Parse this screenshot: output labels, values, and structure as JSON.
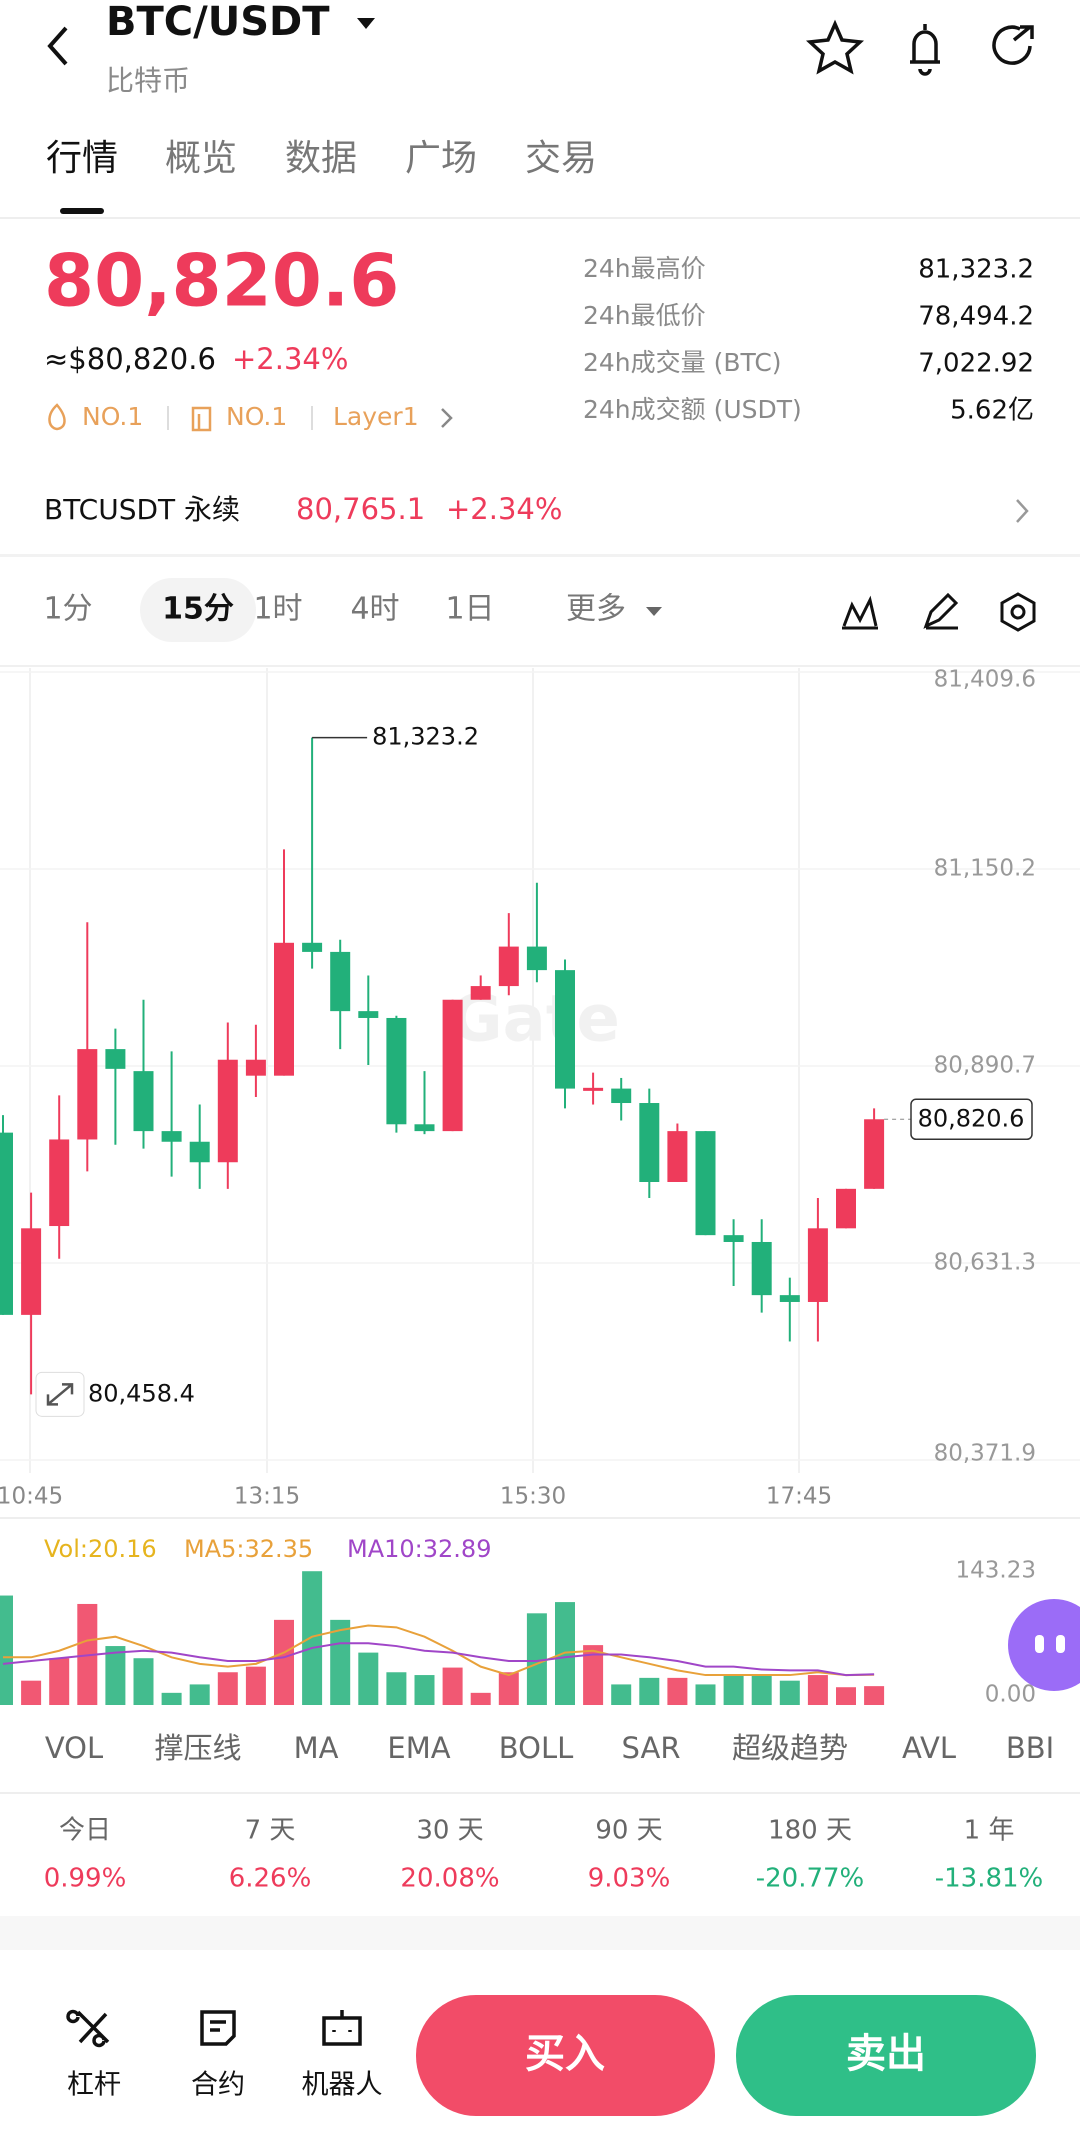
{
  "header": {
    "title": "BTC/USDT",
    "subtitle": "比特币"
  },
  "tabs": [
    "行情",
    "概览",
    "数据",
    "广场",
    "交易"
  ],
  "price": {
    "last": "80,820.6",
    "usd": "≈$80,820.6",
    "change": "+2.34%",
    "tags": [
      "NO.1",
      "NO.1",
      "Layer1"
    ]
  },
  "stats": [
    {
      "label": "24h最高价",
      "value": "81,323.2"
    },
    {
      "label": "24h最低价",
      "value": "78,494.2"
    },
    {
      "label": "24h成交量 (BTC)",
      "value": "7,022.92"
    },
    {
      "label": "24h成交额 (USDT)",
      "value": "5.62亿"
    }
  ],
  "perpetual": {
    "name": "BTCUSDT 永续",
    "price": "80,765.1",
    "change": "+2.34%"
  },
  "intervals": [
    "1分",
    "15分",
    "1时",
    "4时",
    "1日",
    "更多"
  ],
  "candles": {
    "type": "candlestick",
    "watermark": "Gate",
    "ylim": [
      80371.9,
      81409.6
    ],
    "yticks": [
      {
        "value": 81409.6,
        "label": "81,409.6"
      },
      {
        "value": 81150.2,
        "label": "81,150.2"
      },
      {
        "value": 80890.7,
        "label": "80,890.7"
      },
      {
        "value": 80631.3,
        "label": "80,631.3"
      },
      {
        "value": 80371.9,
        "label": "80,371.9"
      }
    ],
    "x_labels": [
      "10:45",
      "13:15",
      "15:30",
      "17:45"
    ],
    "open": [
      80803,
      80563,
      80680,
      80794,
      80913,
      80884,
      80805,
      80791,
      80764,
      80878,
      80878,
      81053,
      81041,
      80963,
      80954,
      80814,
      80805,
      80978,
      80996,
      81048,
      81017,
      80858,
      80861,
      80842,
      80738,
      80805,
      80668,
      80659,
      80589,
      80580,
      80677,
      80729
    ],
    "high": [
      80826,
      80724,
      80852,
      81080,
      80940,
      80978,
      80910,
      80840,
      80948,
      80945,
      81176,
      81323.2,
      81057,
      81010,
      80957,
      80884,
      80978,
      81010,
      81092,
      81132,
      81031,
      80882,
      80875,
      80861,
      80815,
      80805,
      80689,
      80689,
      80612,
      80717,
      80729,
      80835
    ],
    "low": [
      80563,
      80458.4,
      80637,
      80752,
      80787,
      80782,
      80745,
      80729,
      80729,
      80850,
      80878,
      81019,
      80913,
      80892,
      80803,
      80801,
      80805,
      80978,
      80984,
      81001,
      80835,
      80840,
      80819,
      80717,
      80738,
      80668,
      80601,
      80566,
      80528,
      80528,
      80677,
      80729
    ],
    "close": [
      80563,
      80677,
      80794,
      80913,
      80887,
      80805,
      80791,
      80764,
      80899,
      80899,
      81053,
      81041,
      80963,
      80954,
      80814,
      80805,
      80978,
      80996,
      81048,
      81017,
      80861,
      80862,
      80842,
      80738,
      80805,
      80668,
      80659,
      80589,
      80580,
      80677,
      80729,
      80820.6
    ],
    "high_label": "81,323.2",
    "low_label": "80,458.4",
    "last_label": "80,820.6"
  },
  "volume": {
    "type": "bar",
    "legend": [
      "Vol:20.16",
      "MA5:32.35",
      "MA10:32.89"
    ],
    "ylim": [
      0,
      143.23
    ],
    "yticks": [
      143.23,
      {
        "value": 0,
        "label": "0.00"
      }
    ],
    "values": [
      117,
      26,
      50,
      108,
      63,
      50,
      13,
      22,
      35,
      41,
      91,
      143,
      91,
      56,
      35,
      32,
      40,
      13,
      35,
      98,
      110,
      64,
      22,
      29,
      29,
      22,
      32,
      32,
      26,
      32,
      19,
      20.16
    ],
    "ma5": [
      51,
      51,
      58,
      69,
      73,
      63,
      51,
      44,
      41,
      44,
      56,
      73,
      80,
      85,
      83,
      73,
      58,
      41,
      32,
      44,
      56,
      58,
      51,
      44,
      37,
      32,
      32,
      32,
      32,
      35,
      32,
      32.35
    ],
    "ma10": [
      44,
      47,
      50,
      53,
      56,
      58,
      56,
      51,
      47,
      47,
      51,
      61,
      66,
      66,
      63,
      58,
      56,
      51,
      47,
      47,
      51,
      54,
      54,
      51,
      47,
      41,
      41,
      38,
      37,
      37,
      32,
      32.89
    ]
  },
  "indicators": [
    "VOL",
    "撑压线",
    "MA",
    "EMA",
    "BOLL",
    "SAR",
    "超级趋势",
    "AVL",
    "BBI"
  ],
  "periods": [
    {
      "label": "今日",
      "value": "0.99%"
    },
    {
      "label": "7 天",
      "value": "6.26%"
    },
    {
      "label": "30 天",
      "value": "20.08%"
    },
    {
      "label": "90 天",
      "value": "9.03%"
    },
    {
      "label": "180 天",
      "value": "-20.77%"
    },
    {
      "label": "1 年",
      "value": "-13.81%"
    }
  ],
  "bottom": {
    "tools": [
      "杠杆",
      "合约",
      "机器人"
    ],
    "buy": "买入",
    "sell": "卖出"
  }
}
